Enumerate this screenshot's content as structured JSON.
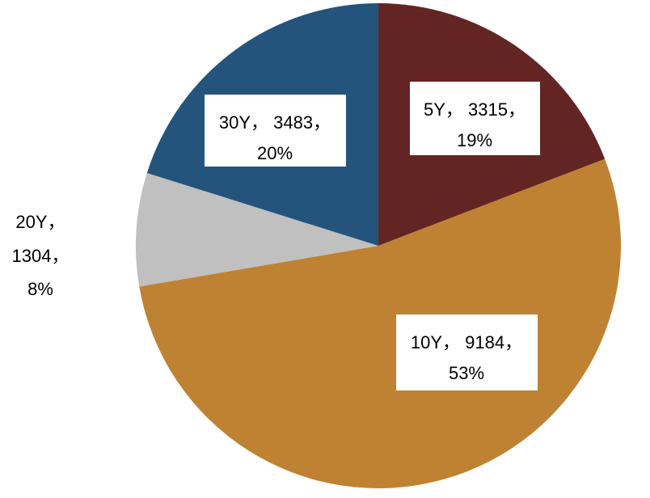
{
  "chart_data": {
    "type": "pie",
    "title": "",
    "start_angle_deg": 0,
    "direction": "clockwise",
    "slices": [
      {
        "label": "5Y",
        "value": 3315,
        "percent": "19%",
        "color": "#632523",
        "label_line1": "5Y， 3315，",
        "label_line2": "19%",
        "boxed": true
      },
      {
        "label": "10Y",
        "value": 9184,
        "percent": "53%",
        "color": "#BF8232",
        "label_line1": "10Y， 9184，",
        "label_line2": "53%",
        "boxed": true
      },
      {
        "label": "20Y",
        "value": 1304,
        "percent": "8%",
        "color": "#C0C0C0",
        "label_line1": "20Y，",
        "label_line2": "1304，",
        "label_line3": "8%",
        "boxed": false
      },
      {
        "label": "30Y",
        "value": 3483,
        "percent": "20%",
        "color": "#24547B",
        "label_line1": "30Y， 3483，",
        "label_line2": "20%",
        "boxed": true
      }
    ],
    "legend": "none",
    "grid": false
  }
}
